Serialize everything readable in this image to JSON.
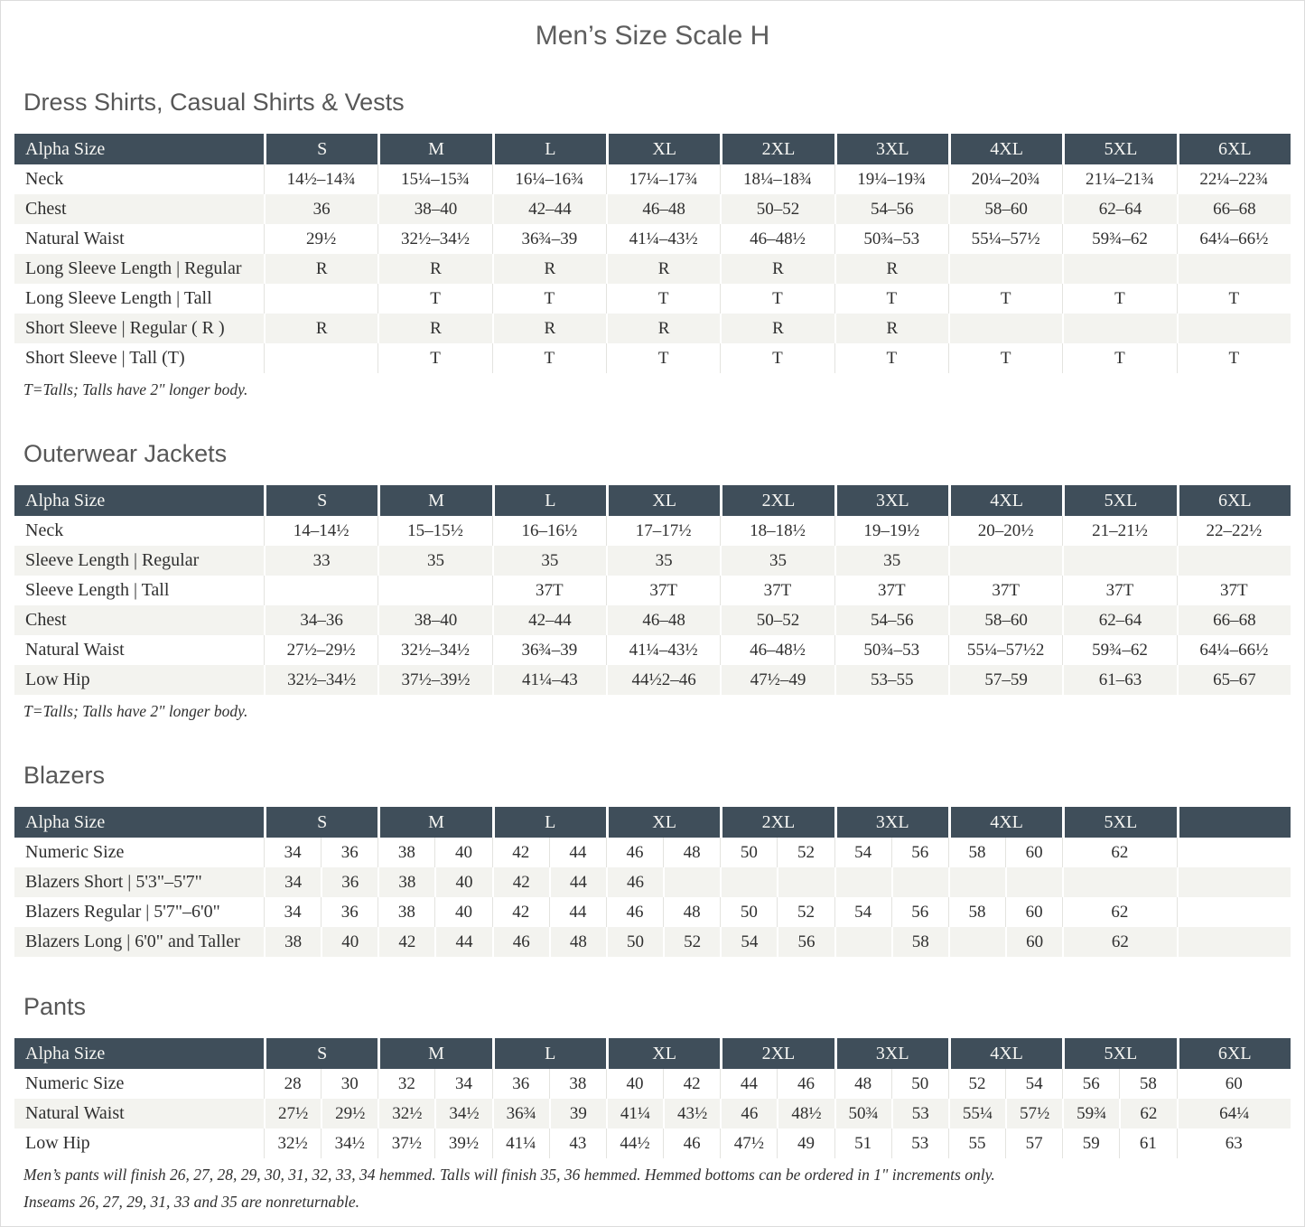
{
  "title": "Men’s Size Scale H",
  "colors": {
    "header_bg": "#3f4e5a",
    "header_text": "#f6f6f3",
    "row_alt_bg": "#f3f3ef",
    "heading_text": "#575757",
    "body_text": "#2f2f2f"
  },
  "sections": [
    {
      "heading": "Dress Shirts, Casual Shirts & Vests",
      "split": false,
      "columns": [
        "Alpha Size",
        "S",
        "M",
        "L",
        "XL",
        "2XL",
        "3XL",
        "4XL",
        "5XL",
        "6XL"
      ],
      "rows": [
        {
          "label": "Neck",
          "cells": [
            "14½–14¾",
            "15¼–15¾",
            "16¼–16¾",
            "17¼–17¾",
            "18¼–18¾",
            "19¼–19¾",
            "20¼–20¾",
            "21¼–21¾",
            "22¼–22¾"
          ]
        },
        {
          "label": "Chest",
          "cells": [
            "36",
            "38–40",
            "42–44",
            "46–48",
            "50–52",
            "54–56",
            "58–60",
            "62–64",
            "66–68"
          ]
        },
        {
          "label": "Natural Waist",
          "cells": [
            "29½",
            "32½–34½",
            "36¾–39",
            "41¼–43½",
            "46–48½",
            "50¾–53",
            "55¼–57½",
            "59¾–62",
            "64¼–66½"
          ]
        },
        {
          "label": "Long Sleeve Length  |  Regular",
          "cells": [
            "R",
            "R",
            "R",
            "R",
            "R",
            "R",
            "",
            "",
            ""
          ]
        },
        {
          "label": "Long Sleeve Length  |  Tall",
          "cells": [
            "",
            "T",
            "T",
            "T",
            "T",
            "T",
            "T",
            "T",
            "T"
          ]
        },
        {
          "label": "Short Sleeve  |  Regular ( R )",
          "cells": [
            "R",
            "R",
            "R",
            "R",
            "R",
            "R",
            "",
            "",
            ""
          ]
        },
        {
          "label": "Short Sleeve  |  Tall (T)",
          "cells": [
            "",
            "T",
            "T",
            "T",
            "T",
            "T",
            "T",
            "T",
            "T"
          ]
        }
      ],
      "footnotes": [
        "T=Talls; Talls have 2\" longer body."
      ]
    },
    {
      "heading": "Outerwear Jackets",
      "split": false,
      "columns": [
        "Alpha Size",
        "S",
        "M",
        "L",
        "XL",
        "2XL",
        "3XL",
        "4XL",
        "5XL",
        "6XL"
      ],
      "rows": [
        {
          "label": "Neck",
          "cells": [
            "14–14½",
            "15–15½",
            "16–16½",
            "17–17½",
            "18–18½",
            "19–19½",
            "20–20½",
            "21–21½",
            "22–22½"
          ]
        },
        {
          "label": "Sleeve Length  |  Regular",
          "cells": [
            "33",
            "35",
            "35",
            "35",
            "35",
            "35",
            "",
            "",
            ""
          ]
        },
        {
          "label": "Sleeve Length  |  Tall",
          "cells": [
            "",
            "",
            "37T",
            "37T",
            "37T",
            "37T",
            "37T",
            "37T",
            "37T"
          ]
        },
        {
          "label": "Chest",
          "cells": [
            "34–36",
            "38–40",
            "42–44",
            "46–48",
            "50–52",
            "54–56",
            "58–60",
            "62–64",
            "66–68"
          ]
        },
        {
          "label": "Natural Waist",
          "cells": [
            "27½–29½",
            "32½–34½",
            "36¾–39",
            "41¼–43½",
            "46–48½",
            "50¾–53",
            "55¼–57½2",
            "59¾–62",
            "64¼–66½"
          ]
        },
        {
          "label": "Low Hip",
          "cells": [
            "32½–34½",
            "37½–39½",
            "41¼–43",
            "44½2–46",
            "47½–49",
            "53–55",
            "57–59",
            "61–63",
            "65–67"
          ]
        }
      ],
      "footnotes": [
        "T=Talls; Talls have 2\" longer body."
      ]
    },
    {
      "heading": "Blazers",
      "split": true,
      "columns": [
        "Alpha Size",
        "S",
        "M",
        "L",
        "XL",
        "2XL",
        "3XL",
        "4XL",
        "5XL",
        ""
      ],
      "rows": [
        {
          "label": "Numeric Size",
          "cells": [
            [
              "34",
              "36"
            ],
            [
              "38",
              "40"
            ],
            [
              "42",
              "44"
            ],
            [
              "46",
              "48"
            ],
            [
              "50",
              "52"
            ],
            [
              "54",
              "56"
            ],
            [
              "58",
              "60"
            ],
            [
              "62"
            ],
            [
              ""
            ]
          ]
        },
        {
          "label": "Blazers Short  |  5'3\"–5'7\"",
          "cells": [
            [
              "34",
              "36"
            ],
            [
              "38",
              "40"
            ],
            [
              "42",
              "44"
            ],
            [
              "46",
              ""
            ],
            [
              "",
              ""
            ],
            [
              "",
              ""
            ],
            [
              "",
              ""
            ],
            [
              ""
            ],
            [
              ""
            ]
          ]
        },
        {
          "label": "Blazers Regular  |  5'7\"–6'0\"",
          "cells": [
            [
              "34",
              "36"
            ],
            [
              "38",
              "40"
            ],
            [
              "42",
              "44"
            ],
            [
              "46",
              "48"
            ],
            [
              "50",
              "52"
            ],
            [
              "54",
              "56"
            ],
            [
              "58",
              "60"
            ],
            [
              "62"
            ],
            [
              ""
            ]
          ]
        },
        {
          "label": "Blazers Long  |  6'0\" and Taller",
          "cells": [
            [
              "38",
              "40"
            ],
            [
              "42",
              "44"
            ],
            [
              "46",
              "48"
            ],
            [
              "50",
              "52"
            ],
            [
              "54",
              "56"
            ],
            [
              "",
              "58"
            ],
            [
              "",
              "60"
            ],
            [
              "62"
            ],
            [
              ""
            ]
          ]
        }
      ],
      "footnotes": []
    },
    {
      "heading": "Pants",
      "split": true,
      "columns": [
        "Alpha Size",
        "S",
        "M",
        "L",
        "XL",
        "2XL",
        "3XL",
        "4XL",
        "5XL",
        "6XL"
      ],
      "rows": [
        {
          "label": "Numeric Size",
          "cells": [
            [
              "28",
              "30"
            ],
            [
              "32",
              "34"
            ],
            [
              "36",
              "38"
            ],
            [
              "40",
              "42"
            ],
            [
              "44",
              "46"
            ],
            [
              "48",
              "50"
            ],
            [
              "52",
              "54"
            ],
            [
              "56",
              "58"
            ],
            [
              "60"
            ]
          ]
        },
        {
          "label": "Natural Waist",
          "cells": [
            [
              "27½",
              "29½"
            ],
            [
              "32½",
              "34½"
            ],
            [
              "36¾",
              "39"
            ],
            [
              "41¼",
              "43½"
            ],
            [
              "46",
              "48½"
            ],
            [
              "50¾",
              "53"
            ],
            [
              "55¼",
              "57½"
            ],
            [
              "59¾",
              "62"
            ],
            [
              "64¼"
            ]
          ]
        },
        {
          "label": "Low Hip",
          "cells": [
            [
              "32½",
              "34½"
            ],
            [
              "37½",
              "39½"
            ],
            [
              "41¼",
              "43"
            ],
            [
              "44½",
              "46"
            ],
            [
              "47½",
              "49"
            ],
            [
              "51",
              "53"
            ],
            [
              "55",
              "57"
            ],
            [
              "59",
              "61"
            ],
            [
              "63"
            ]
          ]
        }
      ],
      "footnotes": [
        "Men’s pants will finish 26, 27, 28, 29, 30, 31, 32, 33, 34 hemmed. Talls will finish 35, 36 hemmed. Hemmed bottoms can be ordered in 1\" increments only.",
        "Inseams 26, 27, 29, 31, 33 and 35 are nonreturnable."
      ]
    }
  ]
}
